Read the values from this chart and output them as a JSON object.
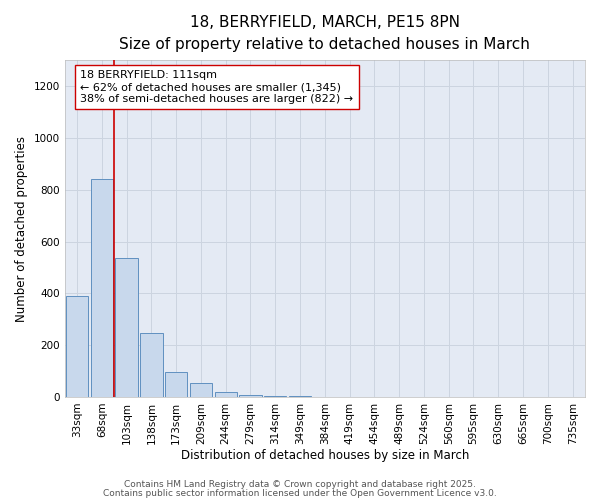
{
  "title": "18, BERRYFIELD, MARCH, PE15 8PN",
  "subtitle": "Size of property relative to detached houses in March",
  "xlabel": "Distribution of detached houses by size in March",
  "ylabel": "Number of detached properties",
  "bar_labels": [
    "33sqm",
    "68sqm",
    "103sqm",
    "138sqm",
    "173sqm",
    "209sqm",
    "244sqm",
    "279sqm",
    "314sqm",
    "349sqm",
    "384sqm",
    "419sqm",
    "454sqm",
    "489sqm",
    "524sqm",
    "560sqm",
    "595sqm",
    "630sqm",
    "665sqm",
    "700sqm",
    "735sqm"
  ],
  "bar_values": [
    390,
    840,
    535,
    248,
    97,
    52,
    18,
    8,
    4,
    2,
    1,
    0,
    0,
    0,
    0,
    0,
    0,
    0,
    0,
    0,
    0
  ],
  "bar_color": "#c8d8ec",
  "bar_edgecolor": "#6090c0",
  "bar_linewidth": 0.7,
  "grid_color": "#ccd4e0",
  "background_color": "#e4eaf4",
  "vline_color": "#cc0000",
  "vline_linewidth": 1.2,
  "vline_position": 1.5,
  "annotation_title": "18 BERRYFIELD: 111sqm",
  "annotation_line1": "← 62% of detached houses are smaller (1,345)",
  "annotation_line2": "38% of semi-detached houses are larger (822) →",
  "ylim": [
    0,
    1300
  ],
  "yticks": [
    0,
    200,
    400,
    600,
    800,
    1000,
    1200
  ],
  "footer_line1": "Contains HM Land Registry data © Crown copyright and database right 2025.",
  "footer_line2": "Contains public sector information licensed under the Open Government Licence v3.0.",
  "title_fontsize": 11,
  "subtitle_fontsize": 9.5,
  "axis_label_fontsize": 8.5,
  "tick_fontsize": 7.5,
  "annotation_fontsize": 8,
  "footer_fontsize": 6.5
}
